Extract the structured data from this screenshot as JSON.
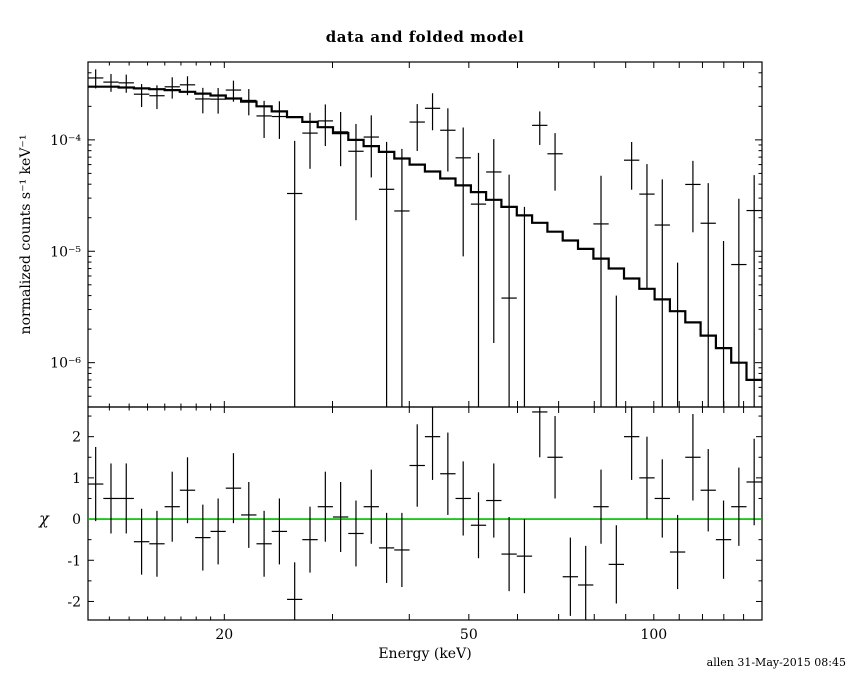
{
  "page": {
    "title": "data and folded model",
    "footer": "allen 31-May-2015 08:45",
    "background": "#ffffff",
    "foreground": "#000000"
  },
  "chart_data": {
    "type": "line",
    "title": "data and folded model",
    "subtitle": "",
    "xlabel": "Energy (keV)",
    "x_scale": "log",
    "xlim": [
      12,
      150
    ],
    "x_major_ticks": [
      20,
      30,
      40,
      50,
      60,
      70,
      80,
      90,
      100,
      110,
      120,
      130,
      140
    ],
    "x_minor_ticks": [
      13,
      14,
      15,
      16,
      17,
      18,
      19
    ],
    "x_labeled_ticks": [
      20,
      50,
      100
    ],
    "x_tick_labels": [
      "20",
      "50",
      "100"
    ],
    "legend": "none",
    "grid": false,
    "panels": [
      {
        "name": "spectrum",
        "ylabel": "normalized counts s⁻¹ keV⁻¹",
        "y_scale": "log",
        "ylim": [
          4e-07,
          0.0005
        ],
        "y_labeled_ticks": [
          0.0001,
          1e-05,
          1e-06
        ],
        "y_tick_labels": [
          "10⁻⁴",
          "10⁻⁵",
          "10⁻⁶"
        ]
      },
      {
        "name": "residuals",
        "ylabel": "χ",
        "y_scale": "linear",
        "ylim": [
          -2.45,
          2.72
        ],
        "y_labeled_ticks": [
          2,
          1,
          0,
          -1,
          -2
        ],
        "y_tick_labels": [
          "2",
          "1",
          "0",
          "-1",
          "-2"
        ],
        "y_minor_ticks": [
          -1.5,
          -0.5,
          0.5,
          1.5,
          2.5
        ],
        "zero_line_color": "#00bb00"
      }
    ],
    "bin_edges_kev": [
      12.0,
      12.71,
      13.46,
      14.25,
      15.1,
      15.99,
      16.93,
      17.93,
      18.99,
      20.11,
      21.3,
      22.56,
      23.89,
      25.3,
      26.79,
      28.38,
      30.05,
      31.83,
      33.71,
      35.7,
      37.81,
      40.04,
      42.41,
      44.91,
      47.57,
      50.38,
      53.35,
      56.5,
      59.84,
      63.38,
      67.12,
      71.08,
      75.28,
      79.73,
      84.44,
      89.43,
      94.71,
      100.31,
      106.23,
      112.51,
      119.16,
      126.19,
      133.65,
      141.54,
      149.9
    ],
    "model_counts": [
      0.0003,
      0.0003,
      0.000295,
      0.00029,
      0.000285,
      0.00028,
      0.00027,
      0.00026,
      0.00025,
      0.000235,
      0.00022,
      0.0002,
      0.00018,
      0.00016,
      0.000145,
      0.00013,
      0.000115,
      0.0001,
      8.8e-05,
      7.8e-05,
      6.8e-05,
      6e-05,
      5.2e-05,
      4.5e-05,
      3.9e-05,
      3.4e-05,
      2.9e-05,
      2.5e-05,
      2.1e-05,
      1.8e-05,
      1.5e-05,
      1.25e-05,
      1.05e-05,
      8.6e-06,
      7e-06,
      5.7e-06,
      4.6e-06,
      3.7e-06,
      2.9e-06,
      2.3e-06,
      1.75e-06,
      1.35e-06,
      1e-06,
      7e-07
    ],
    "data_counts": [
      0.0003595,
      0.00033,
      0.000325,
      0.000257,
      0.000249,
      0.0002995,
      0.000312,
      0.000233,
      0.000232,
      0.00028,
      0.000226,
      0.000164,
      0.000162,
      3.3e-05,
      0.000115,
      0.000148,
      0.000118,
      7.9e-05,
      0.000106,
      3.6e-05,
      2.3e-05,
      0.0001445,
      0.000192,
      0.000122,
      6.9e-05,
      2.65e-05,
      5.15e-05,
      3.8e-06,
      -1.5e-05,
      0.000135,
      7.5e-05,
      -3.65e-05,
      -4.55e-05,
      1.76e-05,
      -2.6e-05,
      6.57e-05,
      3.26e-05,
      1.72e-05,
      -1.71e-05,
      3.98e-05,
      1.785e-05,
      -9.65e-06,
      7.6e-06,
      2.32e-05
    ],
    "data_err": [
      7e-05,
      6e-05,
      6e-05,
      6e-05,
      6e-05,
      6.5e-05,
      6e-05,
      6e-05,
      6e-05,
      6e-05,
      6e-05,
      6e-05,
      6e-05,
      6.5e-05,
      6e-05,
      6e-05,
      6e-05,
      6e-05,
      6e-05,
      6e-05,
      6e-05,
      6.5e-05,
      7e-05,
      7e-05,
      6e-05,
      5e-05,
      5e-05,
      4.5e-05,
      4e-05,
      4.5e-05,
      4e-05,
      3.5e-05,
      3.5e-05,
      3e-05,
      3e-05,
      3e-05,
      2.8e-05,
      2.7e-05,
      2.5e-05,
      2.5e-05,
      2.3e-05,
      2.2e-05,
      2.2e-05,
      2.5e-05
    ],
    "chi": [
      0.85,
      0.5,
      0.5,
      -0.55,
      -0.6,
      0.3,
      0.7,
      -0.45,
      -0.3,
      0.75,
      0.1,
      -0.6,
      -0.3,
      -1.95,
      -0.5,
      0.3,
      0.05,
      -0.35,
      0.3,
      -0.7,
      -0.75,
      1.3,
      2.0,
      1.1,
      0.5,
      -0.15,
      0.45,
      -0.85,
      -0.9,
      2.6,
      1.5,
      -1.4,
      -1.6,
      0.3,
      -1.1,
      2.0,
      1.0,
      0.5,
      -0.8,
      1.5,
      0.7,
      -0.5,
      0.3,
      0.9
    ],
    "chi_err": [
      0.9,
      0.85,
      0.85,
      0.8,
      0.8,
      0.85,
      0.8,
      0.8,
      0.8,
      0.85,
      0.8,
      0.8,
      0.8,
      0.9,
      0.8,
      0.85,
      0.85,
      0.8,
      0.9,
      0.85,
      0.9,
      1.0,
      1.05,
      1.0,
      0.9,
      0.8,
      0.9,
      0.9,
      0.9,
      1.1,
      1.0,
      0.95,
      0.95,
      0.9,
      0.95,
      1.05,
      1.0,
      0.95,
      0.9,
      1.05,
      1.0,
      0.95,
      0.95,
      1.05
    ]
  }
}
